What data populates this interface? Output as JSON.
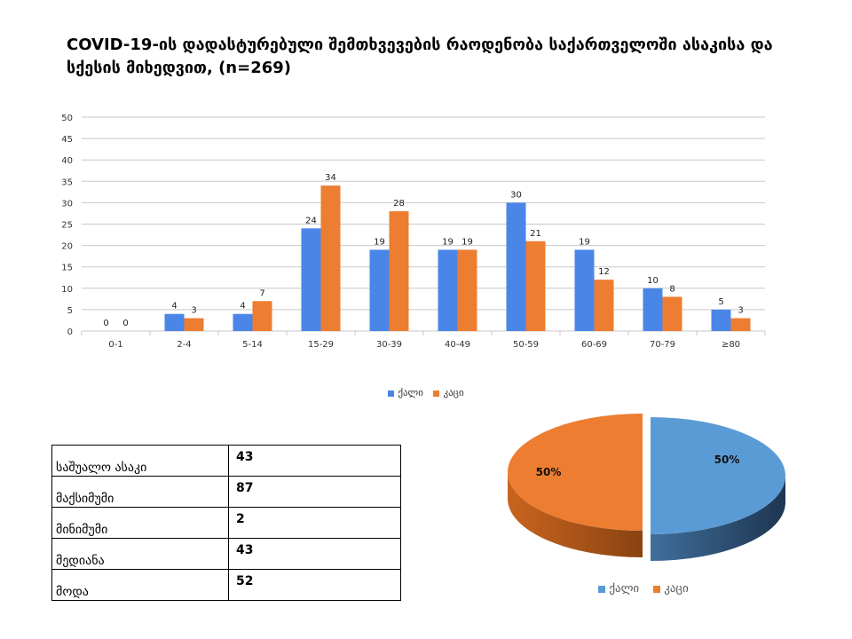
{
  "title": "COVID-19-ის დადასტურებული შემთხვევების რაოდენობა საქართველოში ასაკისა და სქესის მიხედვით, (n=269)",
  "colors": {
    "female": "#4a86e8",
    "male": "#ed7d31",
    "pie_female": "#5b9bd5",
    "pie_male": "#ed7d31"
  },
  "chart_data": [
    {
      "type": "bar",
      "categories": [
        "0-1",
        "2-4",
        "5-14",
        "15-29",
        "30-39",
        "40-49",
        "50-59",
        "60-69",
        "70-79",
        "≥80"
      ],
      "series": [
        {
          "name": "ქალი",
          "values": [
            0,
            4,
            4,
            24,
            19,
            19,
            30,
            19,
            10,
            5
          ]
        },
        {
          "name": "კაცი",
          "values": [
            0,
            3,
            7,
            34,
            28,
            19,
            21,
            12,
            8,
            3
          ]
        }
      ],
      "ylim": [
        0,
        50
      ],
      "yticks": [
        0,
        5,
        10,
        15,
        20,
        25,
        30,
        35,
        40,
        45,
        50
      ],
      "grid": true,
      "legend": "bottom"
    },
    {
      "type": "pie",
      "categories": [
        "ქალი",
        "კაცი"
      ],
      "values": [
        50,
        50
      ],
      "labels": [
        "50%",
        "50%"
      ],
      "legend": "bottom"
    }
  ],
  "stats_table": [
    {
      "label": "საშუალო ასაკი",
      "value": "43"
    },
    {
      "label": "მაქსიმუმი",
      "value": "87"
    },
    {
      "label": "მინიმუმი",
      "value": "2"
    },
    {
      "label": "მედიანა",
      "value": "43"
    },
    {
      "label": "მოდა",
      "value": "52"
    }
  ]
}
